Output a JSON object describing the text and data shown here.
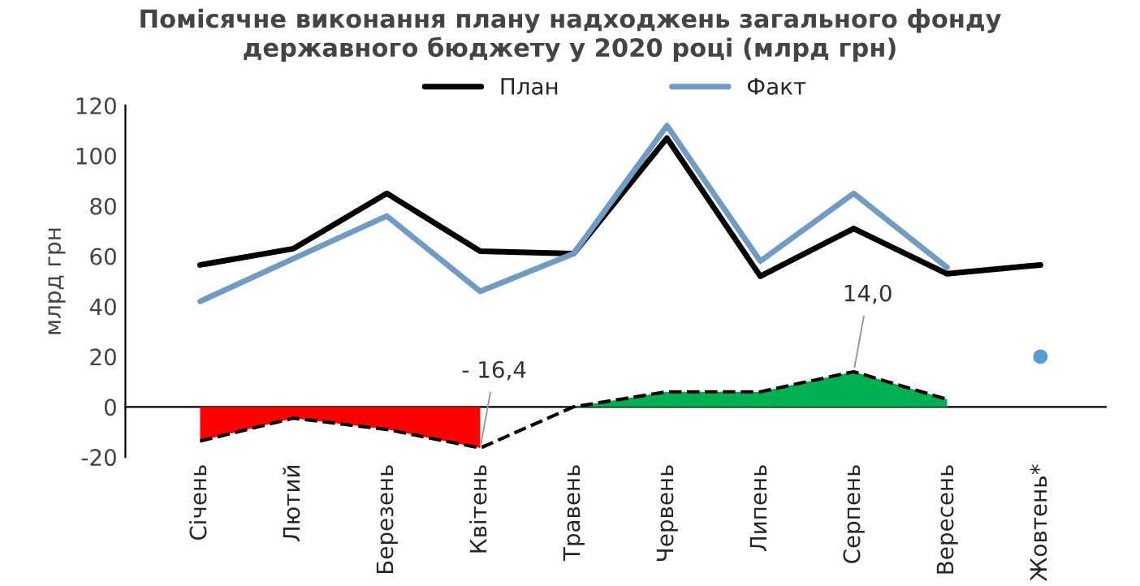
{
  "chart_data": {
    "type": "line",
    "title": "Помісячне виконання плану надходжень загального фонду\nдержавного бюджету у 2020 році (млрд грн)",
    "ylabel": "млрд грн",
    "categories": [
      "Січень",
      "Лютий",
      "Березень",
      "Квітень",
      "Травень",
      "Червень",
      "Липень",
      "Серпень",
      "Вересень",
      "Жовтень*"
    ],
    "series": [
      {
        "name": "План",
        "color": "#000000",
        "values": [
          56.5,
          63,
          85,
          62,
          61,
          107,
          52,
          71,
          53,
          56.5
        ]
      },
      {
        "name": "Факт",
        "color": "#6f9bc4",
        "values": [
          42,
          59,
          76,
          46,
          61,
          112,
          58,
          85,
          55.5,
          null
        ]
      },
      {
        "type": "area",
        "color": "#ff0000",
        "values": [
          -13.6,
          -4.5,
          -9,
          -16.4,
          null,
          null,
          null,
          null,
          null,
          null
        ]
      },
      {
        "type": "area",
        "color": "#00b050",
        "values": [
          null,
          null,
          null,
          null,
          0,
          6,
          6,
          14,
          3,
          null
        ]
      },
      {
        "type": "line",
        "color": "#000000",
        "line_style": "dashed",
        "values": [
          -13.6,
          -4.5,
          -9,
          -16.4,
          0,
          6,
          6,
          14,
          3,
          null
        ]
      },
      {
        "type": "scatter",
        "color": "#5b9bd5",
        "values": [
          null,
          null,
          null,
          null,
          null,
          null,
          null,
          null,
          null,
          20
        ]
      }
    ],
    "annotations": [
      {
        "text": "- 16,4",
        "x": "Квітень",
        "y": -16.4
      },
      {
        "text": "14,0",
        "x": "Серпень",
        "y": 14
      }
    ],
    "ylim": [
      -20,
      120
    ],
    "yticks": [
      -20,
      0,
      20,
      40,
      60,
      80,
      100,
      120
    ],
    "grid": false,
    "legend": "top"
  }
}
